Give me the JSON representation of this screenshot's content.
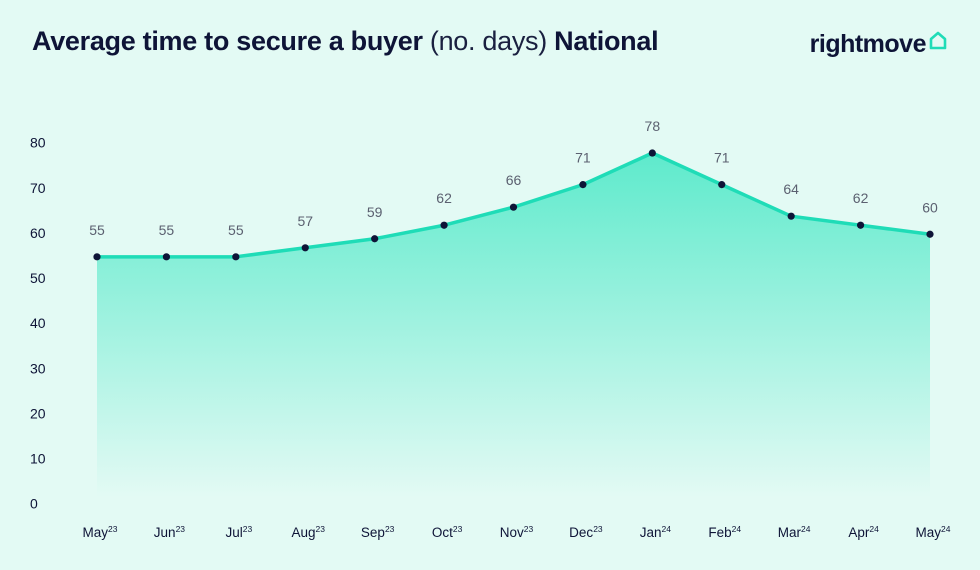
{
  "header": {
    "title_bold": "Average time to secure a buyer",
    "title_light": "(no. days)",
    "title_region": "National",
    "brand": "rightmove"
  },
  "colors": {
    "background": "#e3faf4",
    "line": "#1fdcb7",
    "area_top": "#5eeacc",
    "area_bottom": "#e3faf4",
    "point": "#0e1437",
    "text": "#0e1437"
  },
  "icons": [
    "house-logo-icon"
  ],
  "chart_data": {
    "type": "area",
    "title": "Average time to secure a buyer (no. days) National",
    "categories": [
      {
        "month": "May",
        "year": "23"
      },
      {
        "month": "Jun",
        "year": "23"
      },
      {
        "month": "Jul",
        "year": "23"
      },
      {
        "month": "Aug",
        "year": "23"
      },
      {
        "month": "Sep",
        "year": "23"
      },
      {
        "month": "Oct",
        "year": "23"
      },
      {
        "month": "Nov",
        "year": "23"
      },
      {
        "month": "Dec",
        "year": "23"
      },
      {
        "month": "Jan",
        "year": "24"
      },
      {
        "month": "Feb",
        "year": "24"
      },
      {
        "month": "Mar",
        "year": "24"
      },
      {
        "month": "Apr",
        "year": "24"
      },
      {
        "month": "May",
        "year": "24"
      }
    ],
    "values": [
      55,
      55,
      55,
      57,
      59,
      62,
      66,
      71,
      78,
      71,
      64,
      62,
      60
    ],
    "ylim": [
      0,
      80
    ],
    "yticks": [
      0,
      10,
      20,
      30,
      40,
      50,
      60,
      70,
      80
    ],
    "grid": false,
    "legend": "none"
  }
}
